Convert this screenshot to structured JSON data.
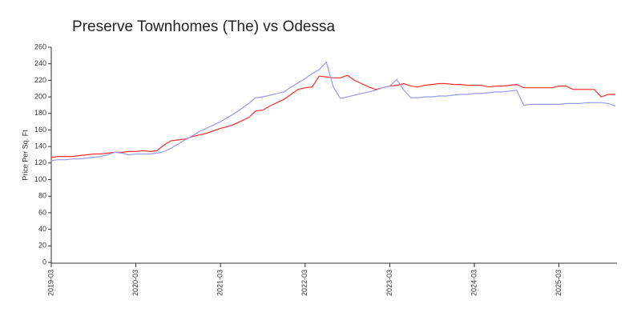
{
  "chart_data": {
    "type": "line",
    "title": "Preserve Townhomes (The) vs Odessa",
    "y_label": "Price Per Sq. Ft",
    "x": [
      "2019-03",
      "2019-04",
      "2019-05",
      "2019-06",
      "2019-07",
      "2019-08",
      "2019-09",
      "2019-10",
      "2019-11",
      "2019-12",
      "2020-01",
      "2020-02",
      "2020-03",
      "2020-04",
      "2020-05",
      "2020-06",
      "2020-07",
      "2020-08",
      "2020-09",
      "2020-10",
      "2020-11",
      "2020-12",
      "2021-01",
      "2021-02",
      "2021-03",
      "2021-04",
      "2021-05",
      "2021-06",
      "2021-07",
      "2021-08",
      "2021-09",
      "2021-10",
      "2021-11",
      "2021-12",
      "2022-01",
      "2022-02",
      "2022-03",
      "2022-04",
      "2022-05",
      "2022-06",
      "2022-07",
      "2022-08",
      "2022-09",
      "2022-10",
      "2022-11",
      "2022-12",
      "2023-01",
      "2023-02",
      "2023-03",
      "2023-04",
      "2023-05",
      "2023-06",
      "2023-07",
      "2023-08",
      "2023-09",
      "2023-10",
      "2023-11",
      "2023-12",
      "2024-01",
      "2024-02",
      "2024-03",
      "2024-04",
      "2024-05",
      "2024-06",
      "2024-07",
      "2024-08",
      "2024-09",
      "2024-10",
      "2024-11",
      "2024-12",
      "2025-01",
      "2025-02",
      "2025-03",
      "2025-04",
      "2025-05",
      "2025-06",
      "2025-07",
      "2025-08",
      "2025-09",
      "2025-10",
      "2025-11"
    ],
    "series": [
      {
        "color": "#ff2a2a",
        "values": [
          127,
          128,
          128,
          128,
          129,
          130,
          131,
          131,
          132,
          133,
          133,
          134,
          134,
          135,
          134,
          135,
          142,
          147,
          148,
          149,
          152,
          154,
          156,
          159,
          162,
          164,
          167,
          171,
          175,
          183,
          184,
          189,
          193,
          197,
          203,
          209,
          211,
          212,
          225,
          224,
          223,
          223,
          226,
          220,
          216,
          212,
          209,
          211,
          213,
          214,
          216,
          213,
          212,
          214,
          215,
          216,
          216,
          215,
          215,
          214,
          214,
          214,
          212,
          213,
          213,
          214,
          215,
          211,
          211,
          211,
          211,
          211,
          213,
          213,
          209,
          209,
          209,
          209,
          200,
          203,
          203
        ]
      },
      {
        "color": "#9999ee",
        "values": [
          123,
          124,
          124,
          125,
          125,
          126,
          127,
          128,
          130,
          133,
          132,
          130,
          131,
          131,
          131,
          132,
          134,
          138,
          143,
          148,
          153,
          158,
          162,
          166,
          170,
          175,
          180,
          186,
          192,
          199,
          200,
          202,
          204,
          206,
          212,
          217,
          222,
          228,
          233,
          242,
          212,
          198,
          200,
          202,
          204,
          206,
          208,
          211,
          213,
          221,
          208,
          199,
          199,
          200,
          200,
          201,
          201,
          202,
          203,
          203,
          204,
          204,
          205,
          206,
          206,
          207,
          208,
          190,
          191,
          191,
          191,
          191,
          191,
          192,
          192,
          192,
          193,
          193,
          193,
          192,
          189
        ]
      }
    ],
    "ylim": [
      0,
      260
    ],
    "yticks": [
      0,
      20,
      40,
      60,
      80,
      100,
      120,
      140,
      160,
      180,
      200,
      220,
      240,
      260
    ],
    "xticks": [
      "2019-03",
      "2020-03",
      "2021-03",
      "2022-03",
      "2023-03",
      "2024-03",
      "2025-03"
    ]
  }
}
